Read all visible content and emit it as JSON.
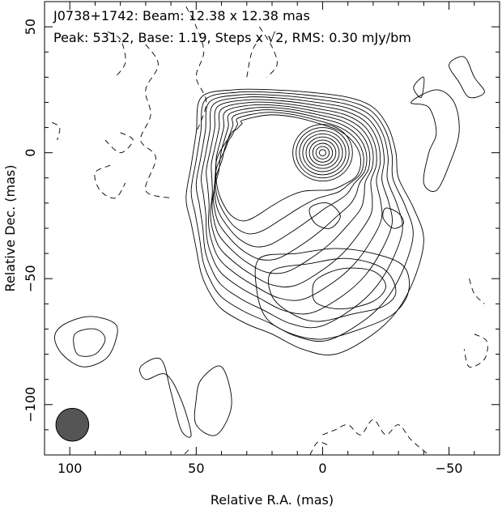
{
  "chart_data": {
    "type": "contour",
    "title": "",
    "annotations": {
      "line1": "J0738+1742: Beam: 12.38 x 12.38 mas",
      "line2_prefix": "Peak: 531.2, Base: 1.19, Steps x ",
      "line2_sqrt": "√2",
      "line2_suffix": ", RMS: 0.30 mJy/bm"
    },
    "xlabel": "Relative R.A. (mas)",
    "ylabel": "Relative Dec. (mas)",
    "xlim": [
      110,
      -70
    ],
    "ylim": [
      -120,
      60
    ],
    "xticks": [
      {
        "value": 100,
        "label": "100"
      },
      {
        "value": 50,
        "label": "50"
      },
      {
        "value": 0,
        "label": "0"
      },
      {
        "value": -50,
        "label": "−50"
      }
    ],
    "yticks": [
      {
        "value": 50,
        "label": "50"
      },
      {
        "value": 0,
        "label": "0"
      },
      {
        "value": -50,
        "label": "−50"
      },
      {
        "value": -100,
        "label": "−100"
      }
    ],
    "peak": 531.2,
    "base": 1.19,
    "step_factor": "sqrt(2)",
    "rms": 0.3,
    "units": "mJy/bm",
    "beam": {
      "major_mas": 12.38,
      "minor_mas": 12.38,
      "x": 99,
      "y": -108,
      "color": "#555555"
    },
    "core": {
      "x": 0,
      "y": 0
    },
    "grid": false
  }
}
